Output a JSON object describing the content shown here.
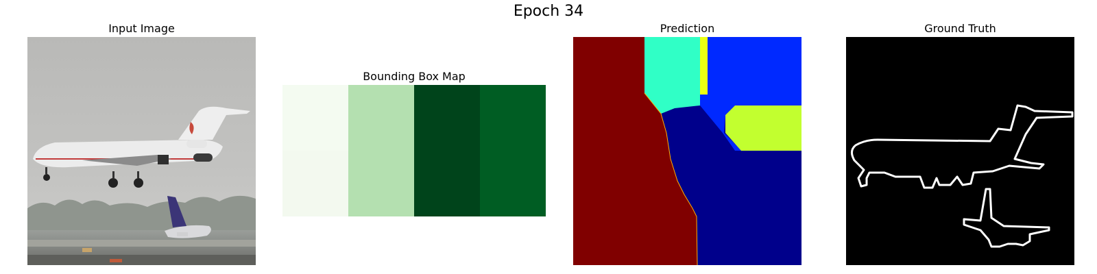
{
  "figure": {
    "title": "Epoch 34"
  },
  "panels": {
    "input": {
      "title": "Input Image"
    },
    "bbox": {
      "title": "Bounding Box Map",
      "colors": [
        "#f4fbf1",
        "#b4e0b0",
        "#00441b",
        "#005d23"
      ]
    },
    "prediction": {
      "title": "Prediction",
      "colors": {
        "dark_red": "#800000",
        "cyan": "#30ffc6",
        "blue": "#0029ff",
        "navy": "#00008b",
        "yellow_green": "#c2ff2f",
        "yellow": "#ecff12"
      }
    },
    "ground_truth": {
      "title": "Ground Truth"
    }
  }
}
